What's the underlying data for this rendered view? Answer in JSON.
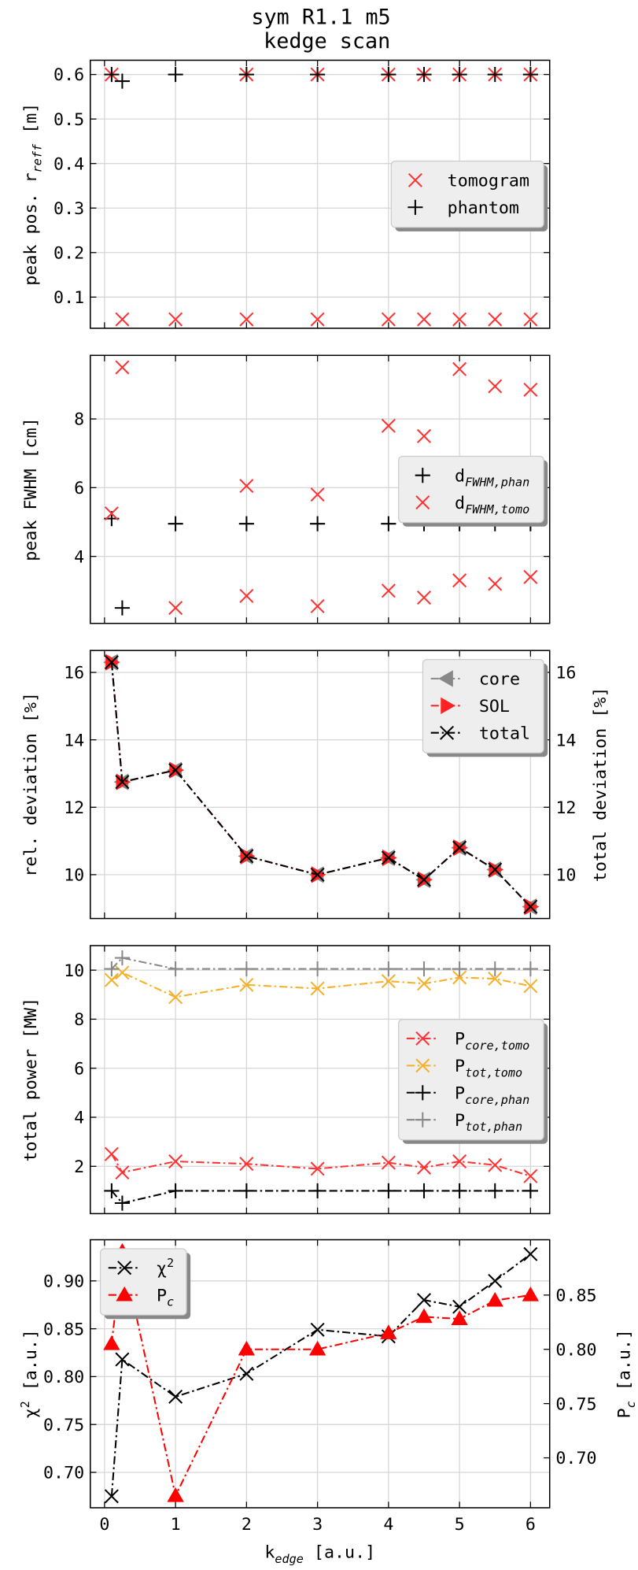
{
  "title": [
    "sym R1.1 m5",
    "kedge scan"
  ],
  "chart_data": [
    {
      "type": "scatter",
      "ylabel": [
        {
          "t": "peak pos. r"
        },
        {
          "sub": "reff"
        },
        {
          "t": " [m]"
        }
      ],
      "xlim": [
        -0.2,
        6.27
      ],
      "xticks": [
        0,
        1,
        2,
        3,
        4,
        5,
        6
      ],
      "ylim": [
        0.03,
        0.632
      ],
      "yticks": [
        0.1,
        0.2,
        0.3,
        0.4,
        0.5,
        0.6
      ],
      "grid": true,
      "legend": "center right",
      "series": [
        {
          "name": [
            {
              "t": "tomogram"
            }
          ],
          "color": "#ff3333",
          "marker": "x",
          "x": [
            0.1,
            2,
            3,
            4,
            4.5,
            5,
            5.5,
            6,
            0.25,
            1,
            2,
            3,
            4,
            4.5,
            5,
            5.5,
            6
          ],
          "values": [
            0.6,
            0.6,
            0.6,
            0.6,
            0.6,
            0.6,
            0.6,
            0.6,
            0.05,
            0.05,
            0.05,
            0.05,
            0.05,
            0.05,
            0.05,
            0.05,
            0.05
          ]
        },
        {
          "name": [
            {
              "t": "phantom"
            }
          ],
          "color": "#000000",
          "marker": "+",
          "x": [
            0.1,
            0.25,
            1,
            2,
            3,
            4,
            4.5,
            5,
            5.5,
            6
          ],
          "values": [
            0.6,
            0.585,
            0.6,
            0.6,
            0.6,
            0.6,
            0.6,
            0.6,
            0.6,
            0.6
          ]
        }
      ]
    },
    {
      "type": "scatter",
      "ylabel": [
        {
          "t": "peak FWHM [cm]"
        }
      ],
      "xlim": [
        -0.2,
        6.27
      ],
      "xticks": [
        0,
        1,
        2,
        3,
        4,
        5,
        6
      ],
      "ylim": [
        2.05,
        9.85
      ],
      "yticks": [
        4,
        6,
        8
      ],
      "grid": true,
      "legend": "center right",
      "series": [
        {
          "name": [
            {
              "t": "d"
            },
            {
              "sub": "FWHM,phan"
            }
          ],
          "color": "#000000",
          "marker": "+",
          "x": [
            0.1,
            0.25,
            1,
            2,
            3,
            4,
            4.5,
            5,
            5.5,
            6
          ],
          "values": [
            5.1,
            2.5,
            4.95,
            4.95,
            4.95,
            4.95,
            4.95,
            4.95,
            4.95,
            4.95
          ]
        },
        {
          "name": [
            {
              "t": "d"
            },
            {
              "sub": "FWHM,tomo"
            }
          ],
          "color": "#ff3333",
          "marker": "x",
          "x": [
            0.1,
            0.25,
            2,
            3,
            4,
            4.5,
            5,
            5.5,
            6,
            1,
            2,
            3,
            4,
            4.5,
            5,
            5.5,
            6
          ],
          "values": [
            5.25,
            9.5,
            6.05,
            5.8,
            7.8,
            7.5,
            9.45,
            8.95,
            8.85,
            2.5,
            2.85,
            2.55,
            3.0,
            2.8,
            3.3,
            3.2,
            3.4
          ]
        }
      ]
    },
    {
      "type": "line",
      "ylabel": [
        {
          "t": "rel. deviation [%]"
        }
      ],
      "y2label": [
        {
          "t": "total deviation [%]"
        }
      ],
      "xlim": [
        -0.2,
        6.27
      ],
      "xticks": [
        0,
        1,
        2,
        3,
        4,
        5,
        6
      ],
      "x": [
        0.1,
        0.25,
        1,
        2,
        3,
        4,
        4.5,
        5,
        5.5,
        6
      ],
      "ylim": [
        8.7,
        16.65
      ],
      "yticks": [
        10,
        12,
        14,
        16
      ],
      "y2lim": [
        8.7,
        16.65
      ],
      "y2ticks": [
        10,
        12,
        14,
        16
      ],
      "grid": true,
      "legend": "upper right",
      "series": [
        {
          "name": [
            {
              "t": "core"
            }
          ],
          "color": "#888888",
          "marker": "<",
          "linestyle": "dashdot",
          "values": [
            16.3,
            12.75,
            13.1,
            10.55,
            10.0,
            10.5,
            9.85,
            10.8,
            10.15,
            9.05
          ]
        },
        {
          "name": [
            {
              "t": "SOL"
            }
          ],
          "color": "#ff2222",
          "marker": ">",
          "linestyle": "dashdot",
          "values": [
            16.3,
            12.75,
            13.1,
            10.55,
            10.0,
            10.5,
            9.85,
            10.8,
            10.15,
            9.05
          ]
        },
        {
          "name": [
            {
              "t": "total"
            }
          ],
          "color": "#000000",
          "marker": "x",
          "linestyle": "dashdot",
          "values": [
            16.3,
            12.75,
            13.1,
            10.55,
            10.0,
            10.5,
            9.85,
            10.8,
            10.15,
            9.05
          ]
        }
      ]
    },
    {
      "type": "line",
      "ylabel": [
        {
          "t": "total power [MW]"
        }
      ],
      "xlim": [
        -0.2,
        6.27
      ],
      "xticks": [
        0,
        1,
        2,
        3,
        4,
        5,
        6
      ],
      "x": [
        0.1,
        0.25,
        1,
        2,
        3,
        4,
        4.5,
        5,
        5.5,
        6
      ],
      "ylim": [
        0.07,
        11.0
      ],
      "yticks": [
        2,
        4,
        6,
        8,
        10
      ],
      "grid": true,
      "legend": "center right",
      "series": [
        {
          "name": [
            {
              "t": "P"
            },
            {
              "sub": "core,tomo"
            }
          ],
          "color": "#ff3333",
          "marker": "x",
          "linestyle": "dashdot",
          "values": [
            2.5,
            1.75,
            2.2,
            2.1,
            1.9,
            2.15,
            1.95,
            2.2,
            2.05,
            1.6
          ]
        },
        {
          "name": [
            {
              "t": "P"
            },
            {
              "sub": "tot,tomo"
            }
          ],
          "color": "#f5b027",
          "marker": "x",
          "linestyle": "dashdot",
          "values": [
            9.6,
            9.9,
            8.9,
            9.4,
            9.25,
            9.55,
            9.45,
            9.7,
            9.65,
            9.35
          ]
        },
        {
          "name": [
            {
              "t": "P"
            },
            {
              "sub": "core,phan"
            }
          ],
          "color": "#000000",
          "marker": "+",
          "linestyle": "dashdot",
          "values": [
            1.0,
            0.5,
            1.0,
            1.0,
            1.0,
            1.0,
            1.0,
            1.0,
            1.0,
            1.0
          ]
        },
        {
          "name": [
            {
              "t": "P"
            },
            {
              "sub": "tot,phan"
            }
          ],
          "color": "#888888",
          "marker": "+",
          "linestyle": "dashdot",
          "values": [
            10.05,
            10.5,
            10.05,
            10.05,
            10.05,
            10.05,
            10.05,
            10.05,
            10.05,
            10.05
          ]
        }
      ]
    },
    {
      "type": "line",
      "ylabel": [
        {
          "t": "χ"
        },
        {
          "sup": "2"
        },
        {
          "t": " [a.u.]"
        }
      ],
      "y2label": [
        {
          "t": "P"
        },
        {
          "sub": "c"
        },
        {
          "t": " [a.u.]"
        }
      ],
      "xlabel": [
        {
          "t": "k"
        },
        {
          "sub": "edge"
        },
        {
          "t": " [a.u.]"
        }
      ],
      "xlim": [
        -0.2,
        6.27
      ],
      "xticks": [
        0,
        1,
        2,
        3,
        4,
        5,
        6
      ],
      "x": [
        0.1,
        0.25,
        1,
        2,
        3,
        4,
        4.5,
        5,
        5.5,
        6
      ],
      "ylim": [
        0.663,
        0.943
      ],
      "yticks": [
        {
          "value": 0.7,
          "label": "0.70"
        },
        0.75,
        {
          "value": 0.8,
          "label": "0.80"
        },
        0.85,
        {
          "value": 0.9,
          "label": "0.90"
        }
      ],
      "y2lim": [
        0.654,
        0.901
      ],
      "y2ticks": [
        {
          "value": 0.7,
          "label": "0.70"
        },
        0.75,
        {
          "value": 0.8,
          "label": "0.80"
        },
        0.85
      ],
      "grid": true,
      "legend": "upper left",
      "series": [
        {
          "name": [
            {
              "t": "χ"
            },
            {
              "sup": "2"
            }
          ],
          "color": "#000000",
          "marker": "x",
          "linestyle": "dashdot",
          "values": [
            0.675,
            0.818,
            0.779,
            0.803,
            0.849,
            0.842,
            0.88,
            0.873,
            0.9,
            0.928
          ]
        },
        {
          "name": [
            {
              "t": "P"
            },
            {
              "sub": "c"
            }
          ],
          "color": "#ff0000",
          "marker": "^",
          "linestyle": "dashdot",
          "axis": "y2",
          "values": [
            0.805,
            0.89,
            0.665,
            0.8,
            0.8,
            0.815,
            0.83,
            0.828,
            0.845,
            0.85
          ]
        }
      ]
    }
  ]
}
